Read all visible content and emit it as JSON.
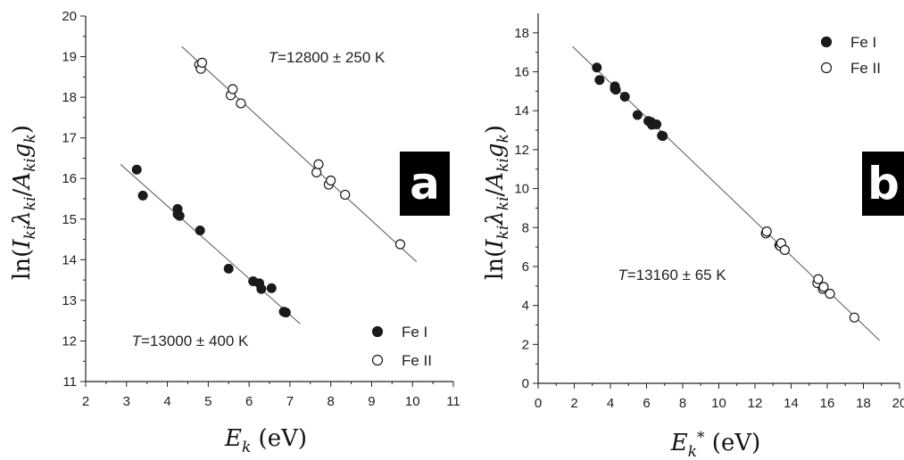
{
  "chart_data": [
    {
      "type": "scatter",
      "panel_label": "a",
      "xlabel": "E_k (eV)",
      "ylabel": "ln(I_ki λ_ki / A_ki g_k)",
      "xlim": [
        2,
        11
      ],
      "ylim": [
        11,
        20
      ],
      "x_ticks": [
        "2",
        "3",
        "4",
        "5",
        "6",
        "7",
        "8",
        "9",
        "10",
        "11"
      ],
      "y_ticks": [
        "11",
        "12",
        "13",
        "14",
        "15",
        "16",
        "17",
        "18",
        "19",
        "20"
      ],
      "legend": {
        "position": "bottom-right",
        "entries": [
          {
            "label": "Fe I",
            "marker": "filled-circle"
          },
          {
            "label": "Fe II",
            "marker": "open-circle"
          }
        ]
      },
      "annotations": [
        {
          "text": "T=12800 ± 250 K"
        },
        {
          "text": "T=13000 ± 400 K"
        }
      ],
      "series": [
        {
          "name": "Fe I",
          "marker": "filled",
          "points": [
            [
              3.25,
              16.22
            ],
            [
              3.4,
              15.58
            ],
            [
              4.25,
              15.25
            ],
            [
              4.25,
              15.12
            ],
            [
              4.3,
              15.08
            ],
            [
              4.8,
              14.72
            ],
            [
              5.5,
              13.78
            ],
            [
              6.1,
              13.47
            ],
            [
              6.25,
              13.42
            ],
            [
              6.3,
              13.28
            ],
            [
              6.55,
              13.3
            ],
            [
              6.85,
              12.72
            ],
            [
              6.9,
              12.7
            ]
          ]
        },
        {
          "name": "Fe II",
          "marker": "open",
          "points": [
            [
              4.78,
              18.8
            ],
            [
              4.82,
              18.7
            ],
            [
              4.85,
              18.85
            ],
            [
              5.55,
              18.05
            ],
            [
              5.6,
              18.2
            ],
            [
              5.8,
              17.85
            ],
            [
              7.65,
              16.15
            ],
            [
              7.7,
              16.35
            ],
            [
              7.95,
              15.85
            ],
            [
              8.0,
              15.95
            ],
            [
              8.35,
              15.6
            ],
            [
              9.7,
              14.38
            ]
          ]
        }
      ],
      "fit_lines": [
        {
          "x": [
            2.85,
            7.25
          ],
          "y": [
            16.35,
            12.42
          ]
        },
        {
          "x": [
            4.35,
            10.1
          ],
          "y": [
            19.25,
            13.95
          ]
        }
      ]
    },
    {
      "type": "scatter",
      "panel_label": "b",
      "xlabel": "E_k* (eV)",
      "ylabel": "ln(I_ki λ_ki / A_ki g_k)",
      "xlim": [
        0,
        20
      ],
      "ylim": [
        0,
        19
      ],
      "x_ticks": [
        "0",
        "2",
        "4",
        "6",
        "8",
        "10",
        "12",
        "14",
        "16",
        "18",
        "20"
      ],
      "y_ticks": [
        "0",
        "2",
        "4",
        "6",
        "8",
        "10",
        "12",
        "14",
        "16",
        "18"
      ],
      "legend": {
        "position": "top-right",
        "entries": [
          {
            "label": "Fe I",
            "marker": "filled-circle"
          },
          {
            "label": "Fe II",
            "marker": "open-circle"
          }
        ]
      },
      "annotations": [
        {
          "text": "T=13160 ± 65 K"
        }
      ],
      "series": [
        {
          "name": "Fe I",
          "marker": "filled",
          "points": [
            [
              3.25,
              16.22
            ],
            [
              3.4,
              15.58
            ],
            [
              4.25,
              15.25
            ],
            [
              4.25,
              15.12
            ],
            [
              4.3,
              15.08
            ],
            [
              4.8,
              14.72
            ],
            [
              5.5,
              13.78
            ],
            [
              6.1,
              13.47
            ],
            [
              6.25,
              13.42
            ],
            [
              6.3,
              13.28
            ],
            [
              6.55,
              13.3
            ],
            [
              6.85,
              12.72
            ],
            [
              6.9,
              12.7
            ]
          ]
        },
        {
          "name": "Fe II",
          "marker": "open",
          "points": [
            [
              12.6,
              7.7
            ],
            [
              12.65,
              7.8
            ],
            [
              13.35,
              7.1
            ],
            [
              13.4,
              7.05
            ],
            [
              13.45,
              7.2
            ],
            [
              13.65,
              6.85
            ],
            [
              15.45,
              5.15
            ],
            [
              15.5,
              5.35
            ],
            [
              15.75,
              4.85
            ],
            [
              15.8,
              4.95
            ],
            [
              16.15,
              4.6
            ],
            [
              17.5,
              3.38
            ]
          ]
        }
      ],
      "fit_lines": [
        {
          "x": [
            1.9,
            18.9
          ],
          "y": [
            17.3,
            2.2
          ]
        }
      ]
    }
  ]
}
